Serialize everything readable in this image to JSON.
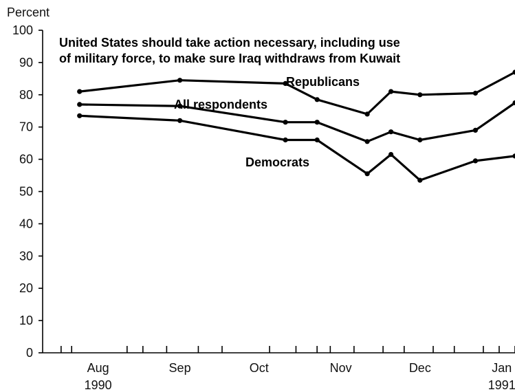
{
  "chart_data": {
    "type": "line",
    "title": "United States should take action necessary, including use of military force, to make sure Iraq withdraws from Kuwait",
    "title_lines": [
      "United States should take action necessary, including use",
      "of military force, to make sure Iraq withdraws from Kuwait"
    ],
    "ylabel": "Percent",
    "xlabel": "",
    "ylim": [
      0,
      100
    ],
    "yticks": [
      0,
      10,
      20,
      30,
      40,
      50,
      60,
      70,
      80,
      90,
      100
    ],
    "xlim": [
      "1990-07-23",
      "1991-01-18"
    ],
    "x_month_labels": [
      {
        "label": "Aug",
        "year": "1990",
        "date": "1990-08-13"
      },
      {
        "label": "Sep",
        "year": "",
        "date": "1990-09-13"
      },
      {
        "label": "Oct",
        "year": "",
        "date": "1990-10-13"
      },
      {
        "label": "Nov",
        "year": "",
        "date": "1990-11-13"
      },
      {
        "label": "Dec",
        "year": "",
        "date": "1990-12-13"
      },
      {
        "label": "Jan",
        "year": "1991",
        "date": "1991-01-13"
      }
    ],
    "x_ticks": [
      "1990-07-30",
      "1990-08-03",
      "1990-08-24",
      "1990-08-30",
      "1990-09-08",
      "1990-09-20",
      "1990-09-29",
      "1990-10-17",
      "1990-10-27",
      "1990-11-04",
      "1990-11-09",
      "1990-11-18",
      "1990-11-29",
      "1990-12-07",
      "1990-12-18",
      "1990-12-26",
      "1991-01-06",
      "1991-01-12",
      "1991-01-18"
    ],
    "grid": false,
    "series": [
      {
        "name": "Republicans",
        "points": [
          {
            "x": "1990-08-06",
            "y": 81
          },
          {
            "x": "1990-09-13",
            "y": 84.5
          },
          {
            "x": "1990-10-23",
            "y": 83.5
          },
          {
            "x": "1990-11-04",
            "y": 78.5
          },
          {
            "x": "1990-11-23",
            "y": 74
          },
          {
            "x": "1990-12-02",
            "y": 81
          },
          {
            "x": "1990-12-13",
            "y": 80
          },
          {
            "x": "1991-01-03",
            "y": 80.5
          },
          {
            "x": "1991-01-18",
            "y": 87
          }
        ]
      },
      {
        "name": "All respondents",
        "points": [
          {
            "x": "1990-08-06",
            "y": 77
          },
          {
            "x": "1990-09-13",
            "y": 76.5
          },
          {
            "x": "1990-10-23",
            "y": 71.5
          },
          {
            "x": "1990-11-04",
            "y": 71.5
          },
          {
            "x": "1990-11-23",
            "y": 65.5
          },
          {
            "x": "1990-12-02",
            "y": 68.5
          },
          {
            "x": "1990-12-13",
            "y": 66
          },
          {
            "x": "1991-01-03",
            "y": 69
          },
          {
            "x": "1991-01-18",
            "y": 77.5
          }
        ]
      },
      {
        "name": "Democrats",
        "points": [
          {
            "x": "1990-08-06",
            "y": 73.5
          },
          {
            "x": "1990-09-13",
            "y": 72
          },
          {
            "x": "1990-10-23",
            "y": 66
          },
          {
            "x": "1990-11-04",
            "y": 66
          },
          {
            "x": "1990-11-23",
            "y": 55.5
          },
          {
            "x": "1990-12-02",
            "y": 61.5
          },
          {
            "x": "1990-12-13",
            "y": 53.5
          },
          {
            "x": "1991-01-03",
            "y": 59.5
          },
          {
            "x": "1991-01-18",
            "y": 61
          }
        ]
      }
    ]
  },
  "colors": {
    "line": "#000000",
    "text": "#111111",
    "background": "#ffffff"
  }
}
